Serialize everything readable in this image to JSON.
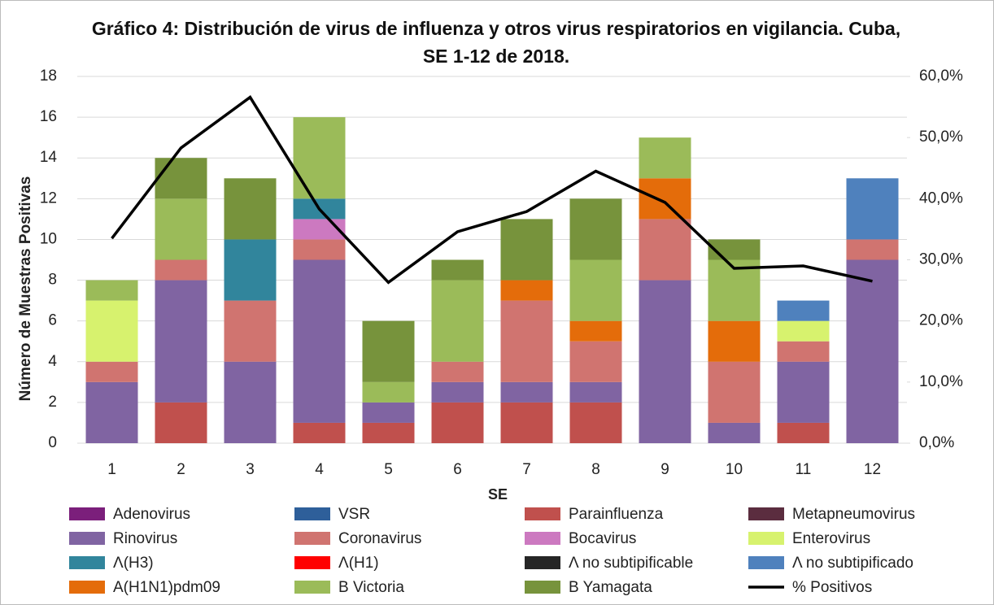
{
  "chart_data": {
    "type": "bar",
    "title": "Gráfico 4: Distribución de virus de influenza y otros virus respiratorios en vigilancia. Cuba,  SE 1-12 de 2018.",
    "x_label": "SE",
    "y_label": "Número de Muestras Positivas",
    "categories": [
      "1",
      "2",
      "3",
      "4",
      "5",
      "6",
      "7",
      "8",
      "9",
      "10",
      "11",
      "12"
    ],
    "ylim": [
      0,
      18
    ],
    "yticks": [
      0,
      2,
      4,
      6,
      8,
      10,
      12,
      14,
      16,
      18
    ],
    "y2lim": [
      0,
      60
    ],
    "y2ticks": [
      {
        "value": 0,
        "label": "0,0%"
      },
      {
        "value": 10,
        "label": "10,0%"
      },
      {
        "value": 20,
        "label": "20,0%"
      },
      {
        "value": 30,
        "label": "30,0%"
      },
      {
        "value": 40,
        "label": "40,0%"
      },
      {
        "value": 50,
        "label": "50,0%"
      },
      {
        "value": 60,
        "label": "60,0%"
      }
    ],
    "legend": "bottom",
    "series": [
      {
        "name": "Adenovirus",
        "color": "#7b1f7b",
        "values": [
          0,
          0,
          0,
          0,
          0,
          0,
          0,
          0,
          0,
          0,
          0,
          0
        ]
      },
      {
        "name": "VSR",
        "color": "#2e5f9a",
        "values": [
          0,
          0,
          0,
          0,
          0,
          0,
          0,
          0,
          0,
          0,
          0,
          0
        ]
      },
      {
        "name": "Parainfluenza",
        "color": "#c0504d",
        "values": [
          0,
          2,
          0,
          1,
          1,
          2,
          2,
          2,
          0,
          0,
          1,
          0
        ]
      },
      {
        "name": "Metapneumovirus",
        "color": "#5b2d3f",
        "values": [
          0,
          0,
          0,
          0,
          0,
          0,
          0,
          0,
          0,
          0,
          0,
          0
        ]
      },
      {
        "name": "Rinovirus",
        "color": "#8064a2",
        "values": [
          3,
          6,
          4,
          8,
          1,
          1,
          1,
          1,
          8,
          1,
          3,
          9
        ]
      },
      {
        "name": "Coronavirus",
        "color": "#d07470",
        "values": [
          1,
          1,
          3,
          1,
          0,
          1,
          4,
          2,
          3,
          3,
          1,
          1
        ]
      },
      {
        "name": "Bocavirus",
        "color": "#cc79c0",
        "values": [
          0,
          0,
          0,
          1,
          0,
          0,
          0,
          0,
          0,
          0,
          0,
          0
        ]
      },
      {
        "name": "Enterovirus",
        "color": "#d7f26e",
        "values": [
          3,
          0,
          0,
          0,
          0,
          0,
          0,
          0,
          0,
          0,
          1,
          0
        ]
      },
      {
        "name": "Λ(H3)",
        "color": "#31859c",
        "values": [
          0,
          0,
          3,
          1,
          0,
          0,
          0,
          0,
          0,
          0,
          0,
          0
        ]
      },
      {
        "name": "Λ(H1)",
        "color": "#ff0000",
        "values": [
          0,
          0,
          0,
          0,
          0,
          0,
          0,
          0,
          0,
          0,
          0,
          0
        ]
      },
      {
        "name": "Λ no subtipificable",
        "color": "#262626",
        "values": [
          0,
          0,
          0,
          0,
          0,
          0,
          0,
          0,
          0,
          0,
          0,
          0
        ]
      },
      {
        "name": "Λ no subtipificado",
        "color": "#4f81bd",
        "values": [
          0,
          0,
          0,
          0,
          0,
          0,
          0,
          0,
          0,
          0,
          1,
          3
        ]
      },
      {
        "name": "A(H1N1)pdm09",
        "color": "#e46c0a",
        "values": [
          0,
          0,
          0,
          0,
          0,
          0,
          1,
          1,
          2,
          2,
          0,
          0
        ]
      },
      {
        "name": "B Victoria",
        "color": "#9bbb59",
        "values": [
          1,
          3,
          0,
          4,
          1,
          4,
          0,
          3,
          2,
          3,
          0,
          0
        ]
      },
      {
        "name": "B Yamagata",
        "color": "#77933c",
        "values": [
          0,
          2,
          3,
          0,
          3,
          1,
          3,
          3,
          0,
          1,
          0,
          0
        ]
      },
      {
        "name": "% Positivos",
        "color": "#000000",
        "type": "line",
        "axis": "y2",
        "values": [
          33.5,
          48.3,
          56.6,
          38.3,
          26.3,
          34.6,
          37.9,
          44.5,
          39.4,
          28.6,
          29.0,
          26.5
        ]
      }
    ]
  }
}
